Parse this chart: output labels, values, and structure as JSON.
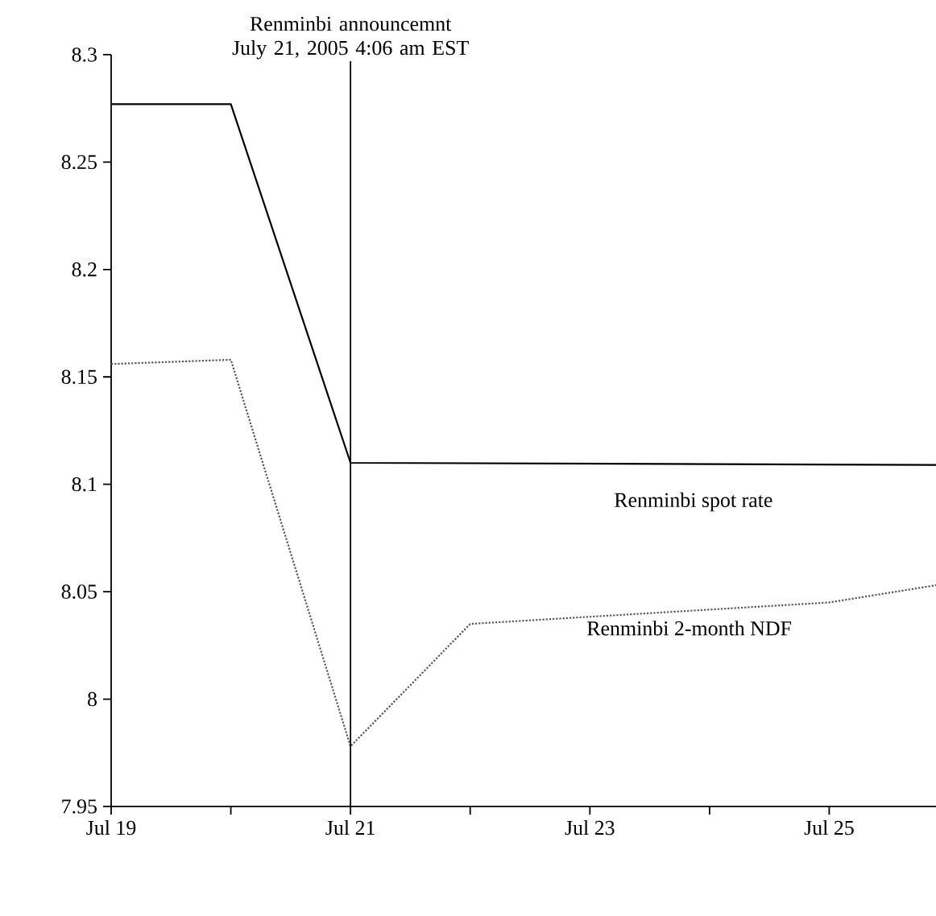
{
  "chart_data": {
    "type": "line",
    "xlim": [
      "2005-07-19",
      "2005-07-26"
    ],
    "xticks": [
      {
        "value": "2005-07-19",
        "label": "Jul 19"
      },
      {
        "value": "2005-07-20",
        "label": null
      },
      {
        "value": "2005-07-21",
        "label": "Jul 21"
      },
      {
        "value": "2005-07-22",
        "label": null
      },
      {
        "value": "2005-07-23",
        "label": "Jul 23"
      },
      {
        "value": "2005-07-24",
        "label": null
      },
      {
        "value": "2005-07-25",
        "label": "Jul 25"
      }
    ],
    "ylim": [
      7.95,
      8.3
    ],
    "yticks": [
      7.95,
      8,
      8.05,
      8.1,
      8.15,
      8.2,
      8.25,
      8.3
    ],
    "series": [
      {
        "name": "Renminbi spot rate",
        "color": "#000000",
        "line_style": "solid",
        "x": [
          "2005-07-19",
          "2005-07-20",
          "2005-07-21",
          "2005-07-26"
        ],
        "values": [
          8.277,
          8.277,
          8.11,
          8.109
        ]
      },
      {
        "name": "Renminbi 2-month NDF",
        "color": "#555555",
        "line_style": "dotted",
        "x": [
          "2005-07-19",
          "2005-07-20",
          "2005-07-21",
          "2005-07-22",
          "2005-07-25",
          "2005-07-26"
        ],
        "values": [
          8.156,
          8.158,
          7.978,
          8.035,
          8.045,
          8.054
        ]
      }
    ],
    "ref_lines": [
      {
        "axis": "x",
        "value": "2005-07-21",
        "label": "Renminbi announcemnt July 21, 2005 4:06 am EST",
        "color": "#000000"
      }
    ],
    "grid": false,
    "legend": false,
    "marker": "none"
  }
}
